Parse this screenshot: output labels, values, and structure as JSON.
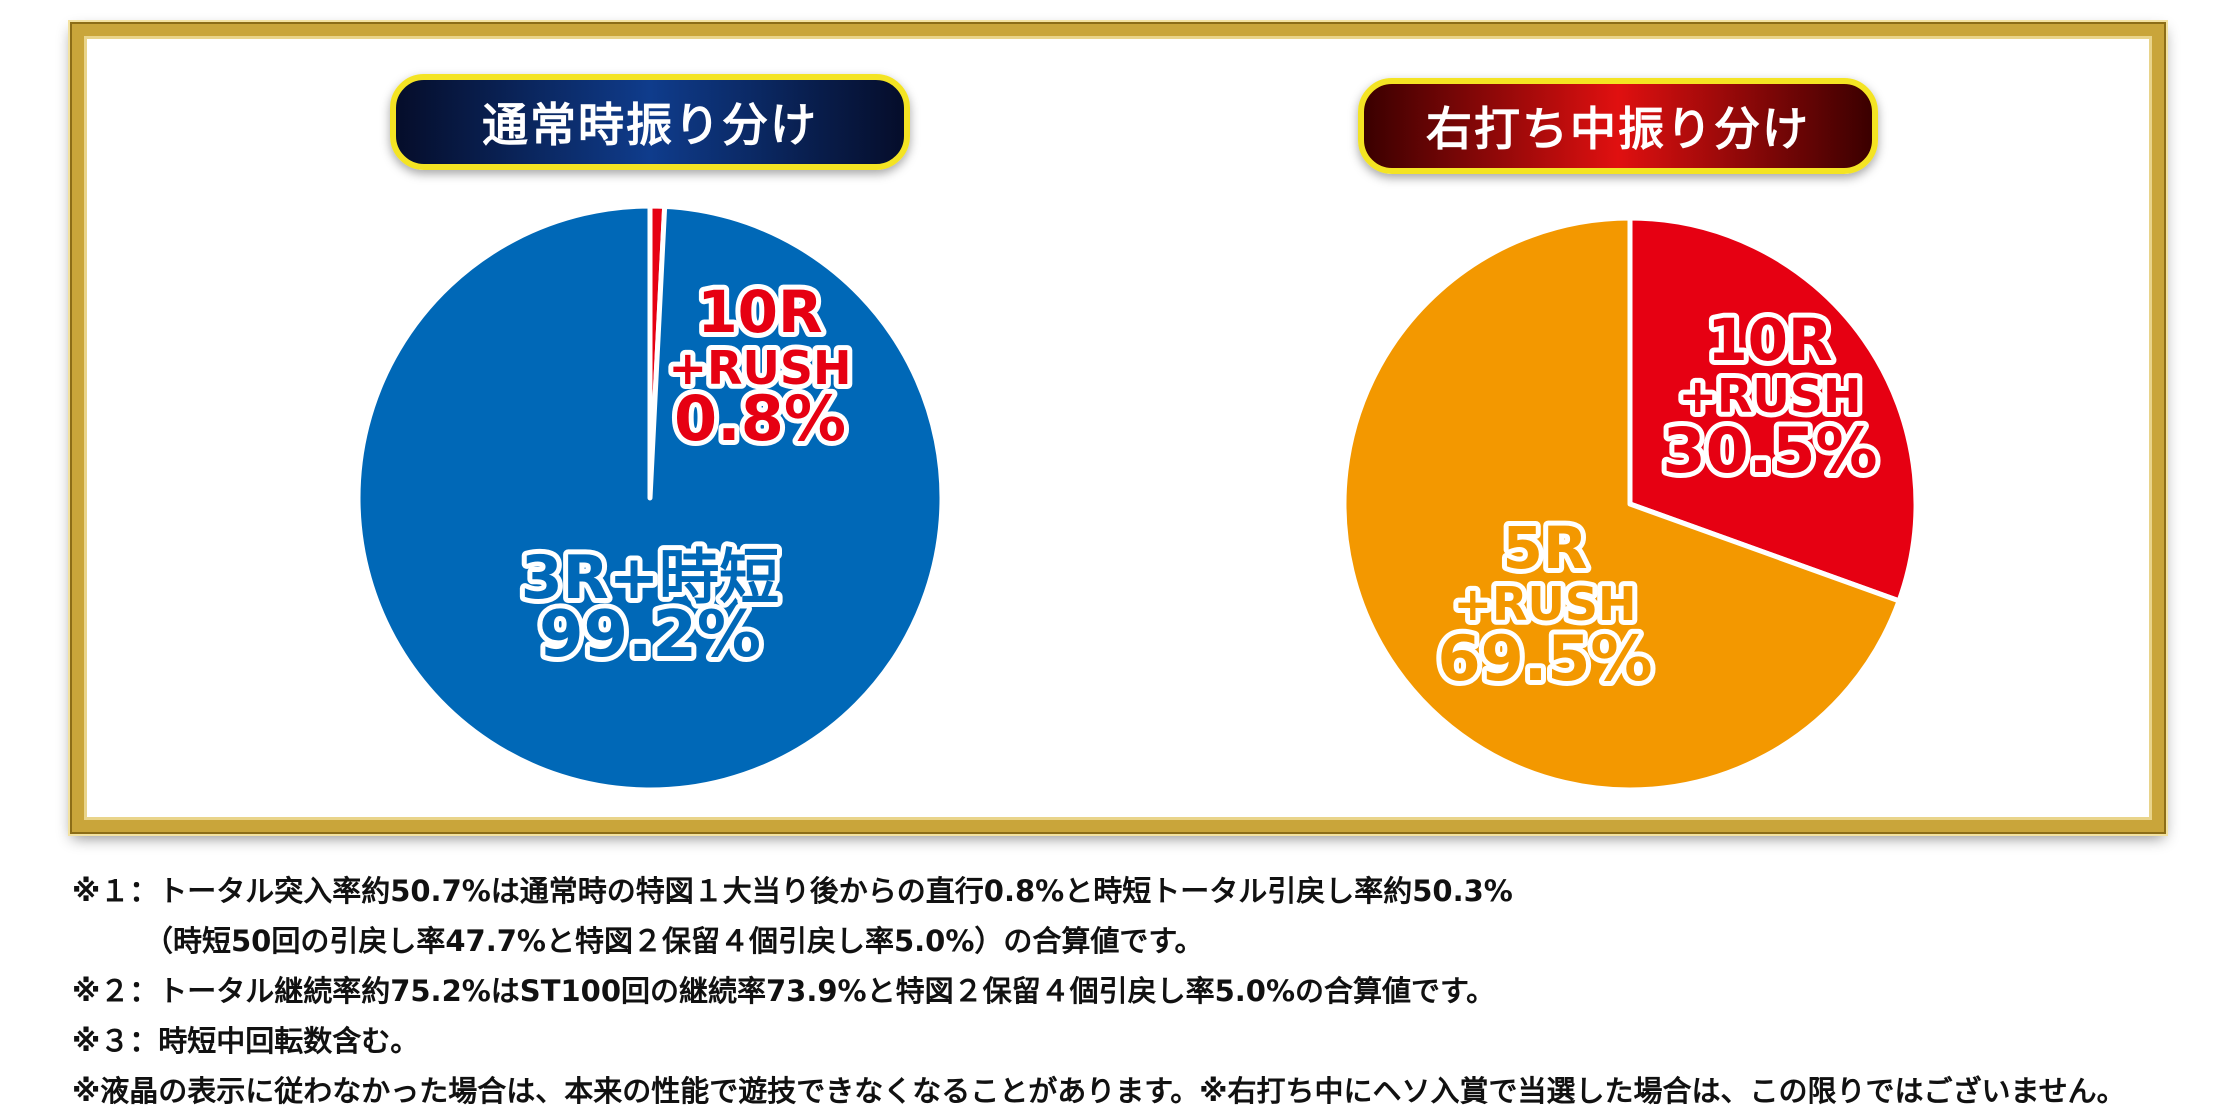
{
  "chart_data": [
    {
      "type": "pie",
      "title": "通常時振り分け",
      "slices": [
        {
          "label": "10R\n+RUSH",
          "value": 0.8,
          "value_label": "0.8%",
          "color": "#e60012"
        },
        {
          "label": "3R+時短",
          "value": 99.2,
          "value_label": "99.2%",
          "color": "#0068b7"
        }
      ]
    },
    {
      "type": "pie",
      "title": "右打ち中振り分け",
      "slices": [
        {
          "label": "10R\n+RUSH",
          "value": 30.5,
          "value_label": "30.5%",
          "color": "#e60012"
        },
        {
          "label": "5R\n+RUSH",
          "value": 69.5,
          "value_label": "69.5%",
          "color": "#f39800"
        }
      ]
    }
  ],
  "notes": [
    "※１：トータル突入率約50.7%は通常時の特図１大当り後からの直行0.8%と時短トータル引戻し率約50.3%",
    "（時短50回の引戻し率47.7%と特図２保留４個引戻し率5.0%）の合算値です。",
    "※２：トータル継続率約75.2%はST100回の継続率73.9%と特図２保留４個引戻し率5.0%の合算値です。",
    "※３：時短中回転数含む。",
    "※液晶の表示に従わなかった場合は、本来の性能で遊技できなくなることがあります。※右打ち中にヘソ入賞で当選した場合は、この限りではございません。"
  ]
}
